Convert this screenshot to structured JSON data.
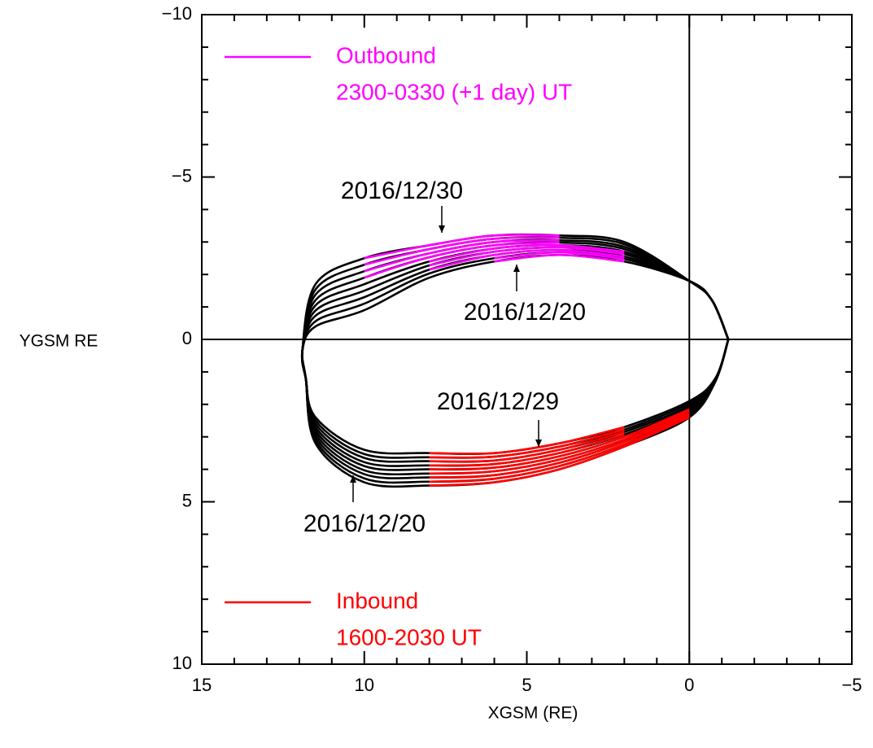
{
  "chart_data": {
    "type": "line",
    "xlabel": "XGSM (RE)",
    "ylabel": "YGSM RE",
    "xlim": [
      15,
      -5
    ],
    "ylim": [
      -10,
      10
    ],
    "xticks": [
      15,
      10,
      5,
      0,
      {
        "value": -5,
        "label": "−5"
      }
    ],
    "yticks": [
      {
        "value": -10,
        "label": "−10"
      },
      {
        "value": -5,
        "label": "−5"
      },
      0,
      5,
      10
    ],
    "xminorticks": [
      14,
      13,
      12,
      11,
      9,
      8,
      7,
      6,
      4,
      3,
      2,
      1,
      -1,
      -2,
      -3,
      -4
    ],
    "yminorticks": [
      -9,
      -8,
      -7,
      -6,
      -4,
      -3,
      -2,
      -1,
      1,
      2,
      3,
      4,
      6,
      7,
      8,
      9
    ],
    "zero_lines": true,
    "legend": [
      {
        "label": "Outbound",
        "detail": "2300-0330 (+1 day) UT",
        "color": "#ff00ff",
        "corner": "upper left"
      },
      {
        "label": "Inbound",
        "detail": "1600-2030 UT",
        "color": "#ff0000",
        "corner": "lower left"
      }
    ],
    "annotations": [
      "2016/12/30",
      "2016/12/20",
      "2016/12/29",
      "2016/12/20"
    ],
    "series": [
      {
        "color": "#000000",
        "x": [
          -1.2,
          -0.7,
          0,
          2,
          4,
          6,
          8,
          10,
          11.5,
          11.9,
          11.8,
          11.5,
          10,
          8,
          6,
          4,
          2,
          0,
          -0.8,
          -1.2
        ],
        "values": [
          0,
          -1.2,
          -1.8,
          -2.4,
          -2.6,
          -2.4,
          -1.9,
          -0.9,
          -0.4,
          0.3,
          1.2,
          3.2,
          4.4,
          4.5,
          4.4,
          4.0,
          3.3,
          2.4,
          1.3,
          0
        ]
      },
      {
        "color": "#000000",
        "x": [
          -1.2,
          -0.7,
          0,
          2,
          4,
          6,
          8,
          10,
          11.5,
          11.9,
          11.8,
          11.5,
          10,
          8,
          6,
          4,
          2,
          0,
          -0.8,
          -1.2
        ],
        "values": [
          0,
          -1.2,
          -1.8,
          -2.48,
          -2.68,
          -2.5,
          -2.03,
          -1.1,
          -0.56,
          0.3,
          1.2,
          3.1,
          4.28,
          4.38,
          4.29,
          3.9,
          3.23,
          2.34,
          1.29,
          0
        ]
      },
      {
        "color": "#000000",
        "x": [
          -1.2,
          -0.7,
          0,
          2,
          4,
          6,
          8,
          10,
          11.5,
          11.9,
          11.8,
          11.5,
          10,
          8,
          6,
          4,
          2,
          0,
          -0.8,
          -1.2
        ],
        "values": [
          0,
          -1.2,
          -1.8,
          -2.55,
          -2.75,
          -2.6,
          -2.15,
          -1.3,
          -0.73,
          0.3,
          1.2,
          3.0,
          4.15,
          4.25,
          4.18,
          3.8,
          3.15,
          2.28,
          1.28,
          0
        ]
      },
      {
        "color": "#000000",
        "x": [
          -1.2,
          -0.7,
          0,
          2,
          4,
          6,
          8,
          10,
          11.5,
          11.9,
          11.8,
          11.5,
          10,
          8,
          6,
          4,
          2,
          0,
          -0.8,
          -1.2
        ],
        "values": [
          0,
          -1.2,
          -1.8,
          -2.63,
          -2.83,
          -2.7,
          -2.28,
          -1.5,
          -0.89,
          0.3,
          1.2,
          2.9,
          4.03,
          4.13,
          4.06,
          3.7,
          3.08,
          2.21,
          1.26,
          0
        ]
      },
      {
        "color": "#000000",
        "x": [
          -1.2,
          -0.7,
          0,
          2,
          4,
          6,
          8,
          10,
          11.5,
          11.9,
          11.8,
          11.5,
          10,
          8,
          6,
          4,
          2,
          0,
          -0.8,
          -1.2
        ],
        "values": [
          0,
          -1.2,
          -1.8,
          -2.7,
          -2.9,
          -2.8,
          -2.4,
          -1.7,
          -1.05,
          0.3,
          1.2,
          2.8,
          3.9,
          4.0,
          3.95,
          3.6,
          3.0,
          2.15,
          1.25,
          0
        ]
      },
      {
        "color": "#000000",
        "x": [
          -1.2,
          -0.7,
          0,
          2,
          4,
          6,
          8,
          10,
          11.5,
          11.9,
          11.8,
          11.5,
          10,
          8,
          6,
          4,
          2,
          0,
          -0.8,
          -1.2
        ],
        "values": [
          0,
          -1.2,
          -1.8,
          -2.78,
          -2.98,
          -2.9,
          -2.53,
          -1.9,
          -1.21,
          0.3,
          1.2,
          2.7,
          3.78,
          3.88,
          3.84,
          3.5,
          2.93,
          2.09,
          1.24,
          0
        ]
      },
      {
        "color": "#000000",
        "x": [
          -1.2,
          -0.7,
          0,
          2,
          4,
          6,
          8,
          10,
          11.5,
          11.9,
          11.8,
          11.5,
          10,
          8,
          6,
          4,
          2,
          0,
          -0.8,
          -1.2
        ],
        "values": [
          0,
          -1.2,
          -1.8,
          -2.85,
          -3.05,
          -3.0,
          -2.65,
          -2.1,
          -1.38,
          0.3,
          1.2,
          2.6,
          3.65,
          3.75,
          3.73,
          3.4,
          2.85,
          2.03,
          1.23,
          0
        ]
      },
      {
        "color": "#000000",
        "x": [
          -1.2,
          -0.7,
          0,
          2,
          4,
          6,
          8,
          10,
          11.5,
          11.9,
          11.8,
          11.5,
          10,
          8,
          6,
          4,
          2,
          0,
          -0.8,
          -1.2
        ],
        "values": [
          0,
          -1.2,
          -1.8,
          -2.93,
          -3.13,
          -3.1,
          -2.78,
          -2.3,
          -1.54,
          0.3,
          1.2,
          2.5,
          3.53,
          3.63,
          3.61,
          3.3,
          2.78,
          1.96,
          1.21,
          0
        ]
      },
      {
        "color": "#000000",
        "x": [
          -1.2,
          -0.7,
          0,
          2,
          4,
          6,
          8,
          10,
          11.5,
          11.9,
          11.8,
          11.5,
          10,
          8,
          6,
          4,
          2,
          0,
          -0.8,
          -1.2
        ],
        "values": [
          0,
          -1.2,
          -1.8,
          -3.0,
          -3.2,
          -3.2,
          -2.9,
          -2.5,
          -1.7,
          0.3,
          1.2,
          2.4,
          3.4,
          3.5,
          3.5,
          3.2,
          2.7,
          1.9,
          1.2,
          0
        ]
      },
      {
        "color": "#ff00ff",
        "x": [
          2,
          4,
          6
        ],
        "values": [
          -2.4,
          -2.6,
          -2.4
        ]
      },
      {
        "color": "#ff00ff",
        "x": [
          2,
          4,
          6
        ],
        "values": [
          -2.48,
          -2.68,
          -2.5
        ]
      },
      {
        "color": "#ff00ff",
        "x": [
          2,
          4,
          6,
          8
        ],
        "values": [
          -2.55,
          -2.75,
          -2.6,
          -2.15
        ]
      },
      {
        "color": "#ff00ff",
        "x": [
          2,
          4,
          6,
          8
        ],
        "values": [
          -2.63,
          -2.83,
          -2.7,
          -2.28
        ]
      },
      {
        "color": "#ff00ff",
        "x": [
          2,
          4,
          6,
          8
        ],
        "values": [
          -2.7,
          -2.9,
          -2.8,
          -2.4
        ]
      },
      {
        "color": "#ff00ff",
        "x": [
          4,
          6,
          8,
          10
        ],
        "values": [
          -2.98,
          -2.9,
          -2.53,
          -1.9
        ]
      },
      {
        "color": "#ff00ff",
        "x": [
          4,
          6,
          8,
          10
        ],
        "values": [
          -3.05,
          -3.0,
          -2.65,
          -2.1
        ]
      },
      {
        "color": "#ff00ff",
        "x": [
          4,
          6,
          8,
          10
        ],
        "values": [
          -3.13,
          -3.1,
          -2.78,
          -2.3
        ]
      },
      {
        "color": "#ff00ff",
        "x": [
          4,
          6,
          8,
          10
        ],
        "values": [
          -3.2,
          -3.2,
          -2.9,
          -2.5
        ]
      },
      {
        "color": "#ff0000",
        "x": [
          8,
          6,
          4,
          2,
          0
        ],
        "values": [
          4.5,
          4.4,
          4.0,
          3.3,
          2.4
        ]
      },
      {
        "color": "#ff0000",
        "x": [
          8,
          6,
          4,
          2,
          0
        ],
        "values": [
          4.38,
          4.29,
          3.9,
          3.23,
          2.34
        ]
      },
      {
        "color": "#ff0000",
        "x": [
          8,
          6,
          4,
          2,
          0
        ],
        "values": [
          4.25,
          4.18,
          3.8,
          3.15,
          2.28
        ]
      },
      {
        "color": "#ff0000",
        "x": [
          8,
          6,
          4,
          2,
          0
        ],
        "values": [
          4.13,
          4.06,
          3.7,
          3.08,
          2.21
        ]
      },
      {
        "color": "#ff0000",
        "x": [
          8,
          6,
          4,
          2,
          0
        ],
        "values": [
          4.0,
          3.95,
          3.6,
          3.0,
          2.15
        ]
      },
      {
        "color": "#ff0000",
        "x": [
          8,
          6,
          4,
          2
        ],
        "values": [
          3.88,
          3.84,
          3.5,
          2.93
        ]
      },
      {
        "color": "#ff0000",
        "x": [
          8,
          6,
          4,
          2
        ],
        "values": [
          3.75,
          3.73,
          3.4,
          2.85
        ]
      },
      {
        "color": "#ff0000",
        "x": [
          8,
          6,
          4,
          2
        ],
        "values": [
          3.63,
          3.61,
          3.3,
          2.78
        ]
      },
      {
        "color": "#ff0000",
        "x": [
          8,
          6,
          4,
          2
        ],
        "values": [
          3.5,
          3.5,
          3.2,
          2.7
        ]
      }
    ]
  }
}
